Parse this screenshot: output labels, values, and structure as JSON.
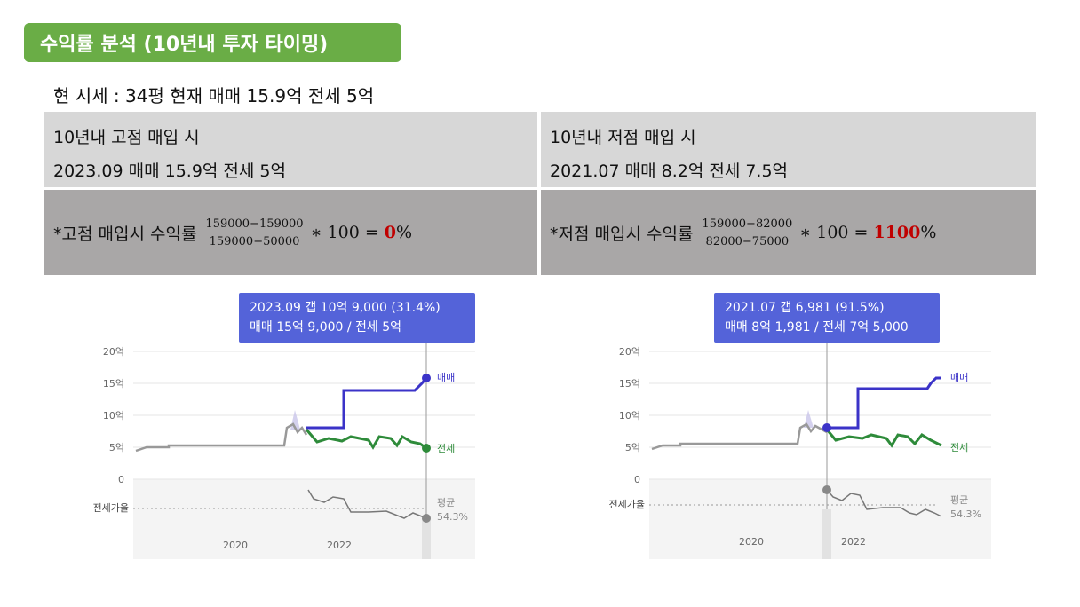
{
  "header": {
    "title": "수익률 분석 (10년내 투자 타이밍)",
    "subtitle": "현 시세 : 34평 현재 매매 15.9억 전세 5억"
  },
  "table": {
    "high": {
      "heading": "10년내 고점 매입 시",
      "detail": "2023.09 매매 15.9억 전세 5억",
      "formula_label": "*고점 매입시 수익률",
      "numerator": "159000−159000",
      "denominator": "159000−50000",
      "times": "∗ 100 =",
      "result": "0",
      "percent": "%"
    },
    "low": {
      "heading": "10년내 저점 매입 시",
      "detail": "2021.07 매매 8.2억 전세 7.5억",
      "formula_label": "*저점 매입시 수익률",
      "numerator": "159000−82000",
      "denominator": "82000−75000",
      "times": "∗ 100 =",
      "result": "1100",
      "percent": "%"
    }
  },
  "charts": [
    {
      "tooltip_line1": "2023.09  갭 10억 9,000 (31.4%)",
      "tooltip_line2": "매매 15억 9,000 / 전세 5억",
      "y_ticks": [
        "20억",
        "15억",
        "10억",
        "5억",
        "0"
      ],
      "x_ticks": [
        "2020",
        "2022"
      ],
      "series_sale": "매매",
      "series_jeonse": "전세",
      "ratio_label": "전세가율",
      "avg_label": "평균",
      "avg_value": "54.3%"
    },
    {
      "tooltip_line1": "2021.07  갭 6,981 (91.5%)",
      "tooltip_line2": "매매 8억 1,981 / 전세 7억 5,000",
      "y_ticks": [
        "20억",
        "15억",
        "10억",
        "5억",
        "0"
      ],
      "x_ticks": [
        "2020",
        "2022"
      ],
      "series_sale": "매매",
      "series_jeonse": "전세",
      "ratio_label": "전세가율",
      "avg_label": "평균",
      "avg_value": "54.3%"
    }
  ],
  "colors": {
    "title_bg": "#6aad46",
    "sale_line": "#3b33c8",
    "jeonse_line": "#2e8b3a",
    "base_line": "#999999",
    "tooltip_bg": "#5463d9",
    "highlight": "#c00000"
  }
}
